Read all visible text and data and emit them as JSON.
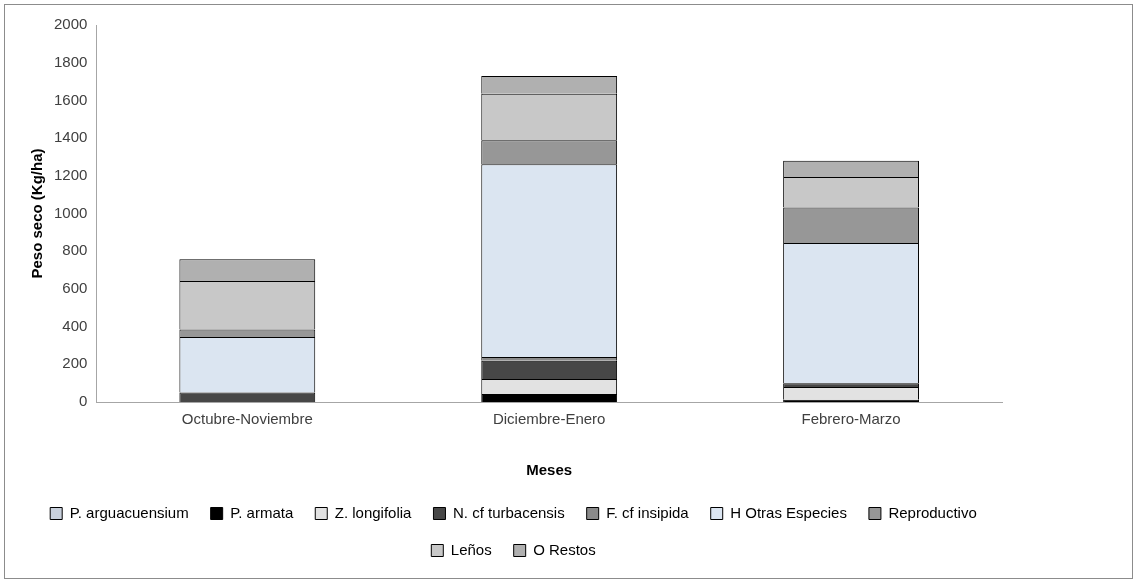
{
  "chart_data": {
    "type": "bar",
    "stacked": true,
    "xlabel": "Meses",
    "ylabel": "Peso seco (Kg/ha)",
    "categories": [
      "Octubre-Noviembre",
      "Diciembre-Enero",
      "Febrero-Marzo"
    ],
    "ylim": [
      0,
      2000
    ],
    "yticks": [
      0,
      200,
      400,
      600,
      800,
      1000,
      1200,
      1400,
      1600,
      1800,
      2000
    ],
    "grid": false,
    "legend": "bottom",
    "series": [
      {
        "name": "P. arguacuensium",
        "color": "#c8d0dc",
        "values": [
          0,
          0,
          0
        ]
      },
      {
        "name": "P. armata",
        "color": "#000000",
        "values": [
          0,
          42,
          12
        ]
      },
      {
        "name": "Z. longifolia",
        "color": "#e2e2e2",
        "values": [
          0,
          80,
          67
        ]
      },
      {
        "name": "N. cf turbacensis",
        "color": "#474747",
        "values": [
          50,
          97,
          20
        ]
      },
      {
        "name": "F. cf insipida",
        "color": "#8a8a8a",
        "values": [
          0,
          20,
          0
        ]
      },
      {
        "name": "H Otras Especies",
        "color": "#dbe5f1",
        "values": [
          295,
          1022,
          745
        ]
      },
      {
        "name": "Reproductivo",
        "color": "#979797",
        "values": [
          40,
          128,
          188
        ]
      },
      {
        "name": "Leños",
        "color": "#c8c8c8",
        "values": [
          257,
          246,
          162
        ]
      },
      {
        "name": "O Restos",
        "color": "#b0b0b0",
        "values": [
          115,
          94,
          86
        ]
      }
    ]
  }
}
